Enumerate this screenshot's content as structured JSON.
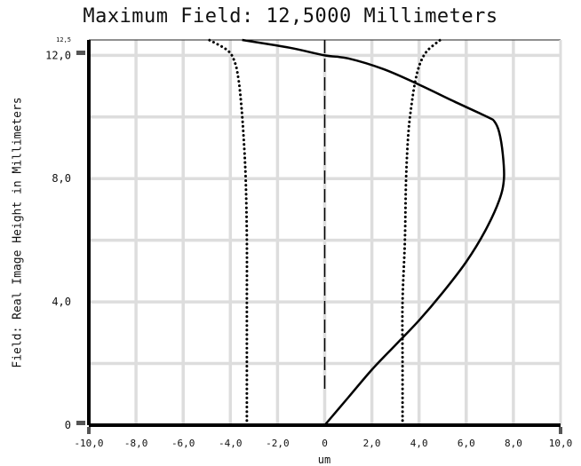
{
  "chart_data": {
    "type": "line",
    "title": "Maximum Field: 12,5000 Millimeters",
    "xlabel": "um",
    "ylabel": "Field: Real Image Height in Millimeters",
    "xlim": [
      -10,
      10
    ],
    "ylim": [
      0,
      12.5
    ],
    "grid": true,
    "x_ticks": [
      {
        "value": -10,
        "label": "-10,0"
      },
      {
        "value": -8,
        "label": "-8,0"
      },
      {
        "value": -6,
        "label": "-6,0"
      },
      {
        "value": -4,
        "label": "-4,0"
      },
      {
        "value": -2,
        "label": "-2,0"
      },
      {
        "value": 0,
        "label": "0"
      },
      {
        "value": 2,
        "label": "2,0"
      },
      {
        "value": 4,
        "label": "4,0"
      },
      {
        "value": 6,
        "label": "6,0"
      },
      {
        "value": 8,
        "label": "8,0"
      },
      {
        "value": 10,
        "label": "10,0"
      }
    ],
    "y_ticks": [
      {
        "value": 0,
        "label": "0"
      },
      {
        "value": 4,
        "label": "4,0"
      },
      {
        "value": 8,
        "label": "8,0"
      },
      {
        "value": 12,
        "label": "12,0"
      },
      {
        "value": 12.5,
        "label": "12,5"
      }
    ],
    "series": [
      {
        "style": "solid",
        "points": [
          [
            0.0,
            0.0
          ],
          [
            1.0,
            0.9
          ],
          [
            2.0,
            1.8
          ],
          [
            3.0,
            2.6
          ],
          [
            4.0,
            3.4
          ],
          [
            5.0,
            4.3
          ],
          [
            6.0,
            5.3
          ],
          [
            6.8,
            6.3
          ],
          [
            7.4,
            7.3
          ],
          [
            7.6,
            8.0
          ],
          [
            7.55,
            8.8
          ],
          [
            7.4,
            9.5
          ],
          [
            7.2,
            9.85
          ],
          [
            6.9,
            10.0
          ],
          [
            5.5,
            10.5
          ],
          [
            4.0,
            11.05
          ],
          [
            2.5,
            11.55
          ],
          [
            1.0,
            11.9
          ],
          [
            0.0,
            12.0
          ],
          [
            -1.5,
            12.25
          ],
          [
            -3.5,
            12.5
          ]
        ]
      },
      {
        "style": "dotted",
        "points": [
          [
            3.3,
            0.0
          ],
          [
            3.3,
            2.0
          ],
          [
            3.3,
            4.0
          ],
          [
            3.4,
            6.0
          ],
          [
            3.45,
            8.0
          ],
          [
            3.55,
            9.5
          ],
          [
            3.7,
            10.5
          ],
          [
            3.85,
            11.2
          ],
          [
            4.05,
            11.75
          ],
          [
            4.35,
            12.15
          ],
          [
            4.9,
            12.5
          ]
        ]
      },
      {
        "style": "dotted",
        "points": [
          [
            -3.3,
            0.0
          ],
          [
            -3.3,
            2.0
          ],
          [
            -3.3,
            4.0
          ],
          [
            -3.3,
            6.0
          ],
          [
            -3.35,
            8.0
          ],
          [
            -3.45,
            9.5
          ],
          [
            -3.55,
            10.5
          ],
          [
            -3.65,
            11.2
          ],
          [
            -3.8,
            11.75
          ],
          [
            -4.1,
            12.15
          ],
          [
            -4.9,
            12.5
          ]
        ]
      }
    ]
  }
}
